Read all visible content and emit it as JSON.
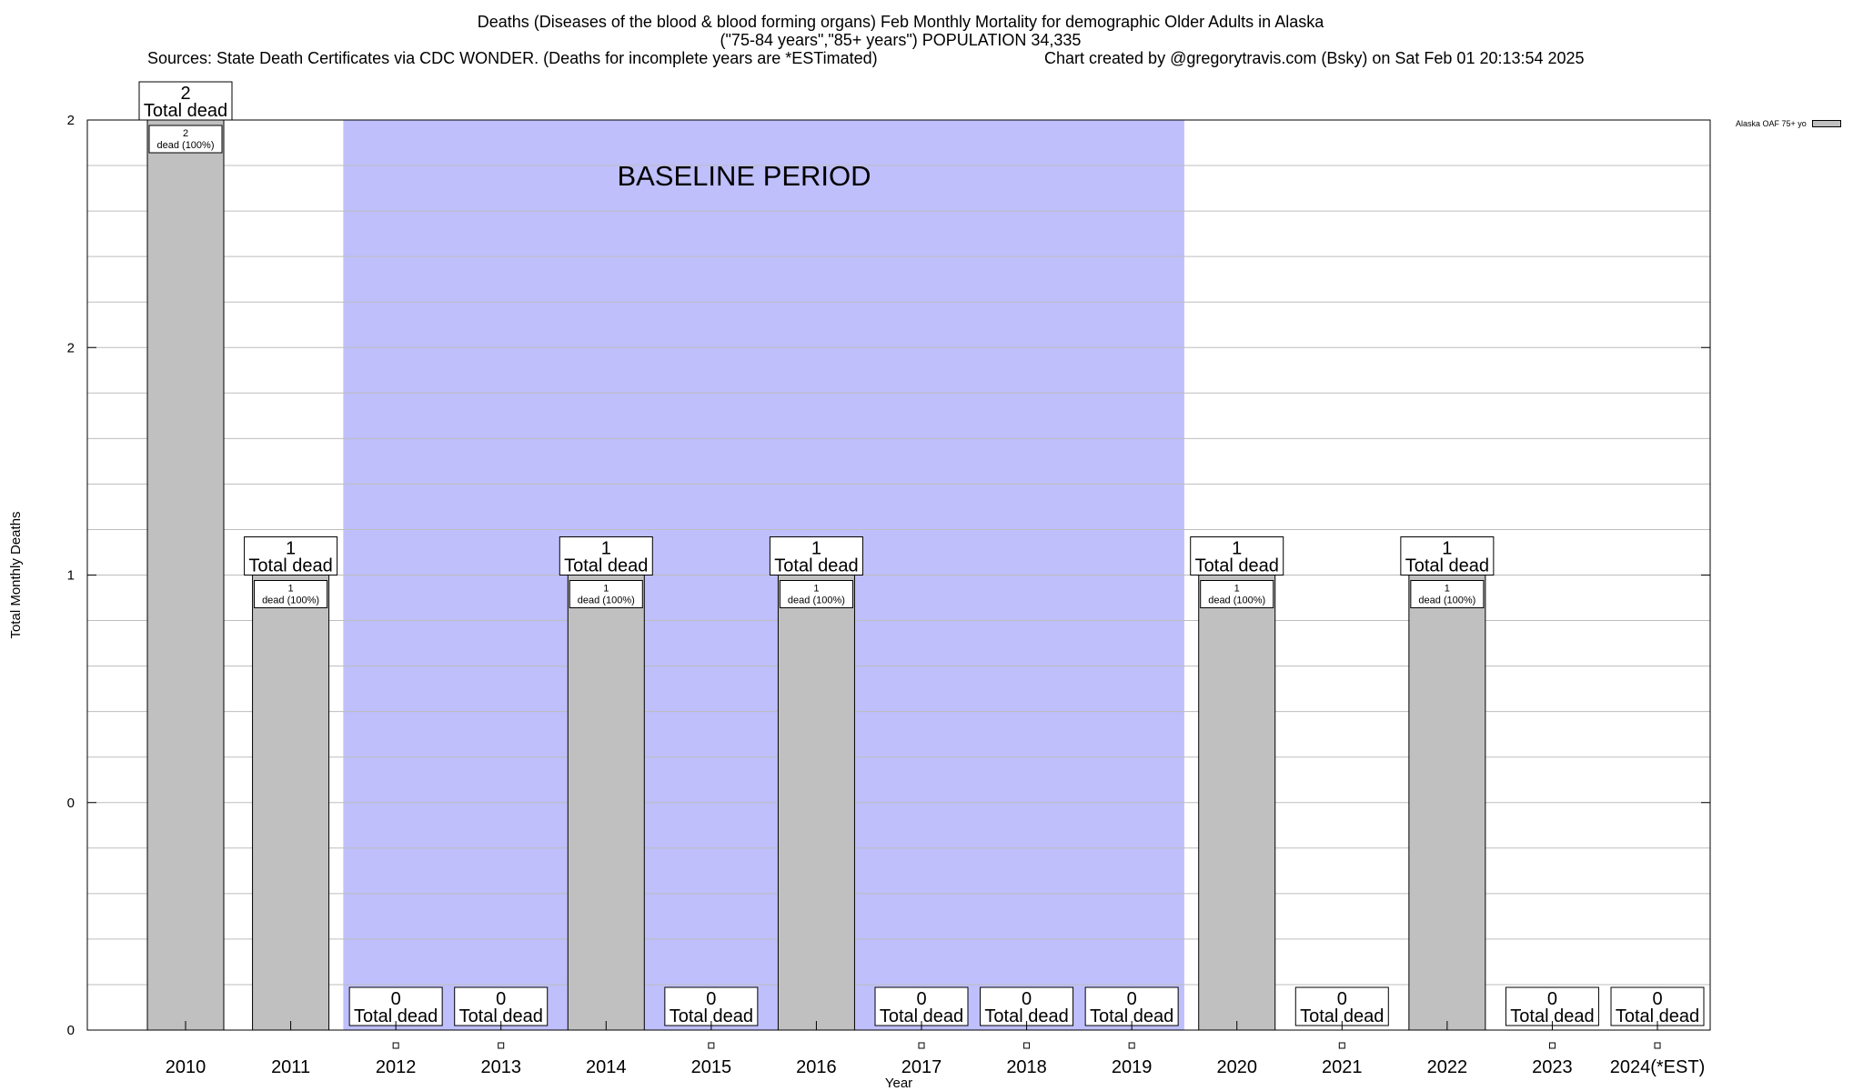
{
  "header": {
    "title_line1": "Deaths (Diseases of the blood & blood forming organs) Feb Monthly Mortality for demographic Older Adults in Alaska",
    "title_line2": "(\"75-84 years\",\"85+ years\") POPULATION 34,335",
    "sources": "Sources: State Death Certificates via CDC WONDER. (Deaths for incomplete years are *ESTimated)",
    "credit": "Chart created by @gregorytravis.com (Bsky) on Sat Feb 01 20:13:54 2025"
  },
  "chart_data": {
    "type": "bar",
    "title": "Deaths (Diseases of the blood & blood forming organs) Feb Monthly Mortality for demographic Older Adults in Alaska",
    "xlabel": "Year",
    "ylabel": "Total Monthly Deaths",
    "categories": [
      "2010",
      "2011",
      "2012",
      "2013",
      "2014",
      "2015",
      "2016",
      "2017",
      "2018",
      "2019",
      "2020",
      "2021",
      "2022",
      "2023",
      "2024(*EST)"
    ],
    "series": [
      {
        "name": "Alaska OAF 75+ yo",
        "values": [
          2,
          1,
          0,
          0,
          1,
          0,
          1,
          0,
          0,
          0,
          1,
          0,
          1,
          0,
          0
        ],
        "color": "#c0c0c0"
      }
    ],
    "bar_labels_inner": [
      "2",
      "1",
      "",
      "",
      "1",
      "",
      "1",
      "",
      "",
      "",
      "1",
      "",
      "1",
      "",
      ""
    ],
    "bar_labels_inner_sub": [
      "dead (100%)",
      "dead (100%)",
      "",
      "",
      "dead (100%)",
      "",
      "dead (100%)",
      "",
      "",
      "",
      "dead (100%)",
      "",
      "dead (100%)",
      "",
      ""
    ],
    "total_label_text": "Total dead",
    "ylim": [
      0,
      2
    ],
    "y_tick_labels": [
      "0",
      "0",
      "1",
      "2",
      "2"
    ],
    "y_tick_values": [
      0,
      0.5,
      1,
      1.5,
      2
    ],
    "baseline_period": {
      "label": "BASELINE PERIOD",
      "start": "2012",
      "end": "2019",
      "color": "#bfbffc"
    },
    "grid": true,
    "legend": {
      "position": "top-right",
      "entries": [
        "Alaska OAF 75+ yo"
      ]
    }
  }
}
